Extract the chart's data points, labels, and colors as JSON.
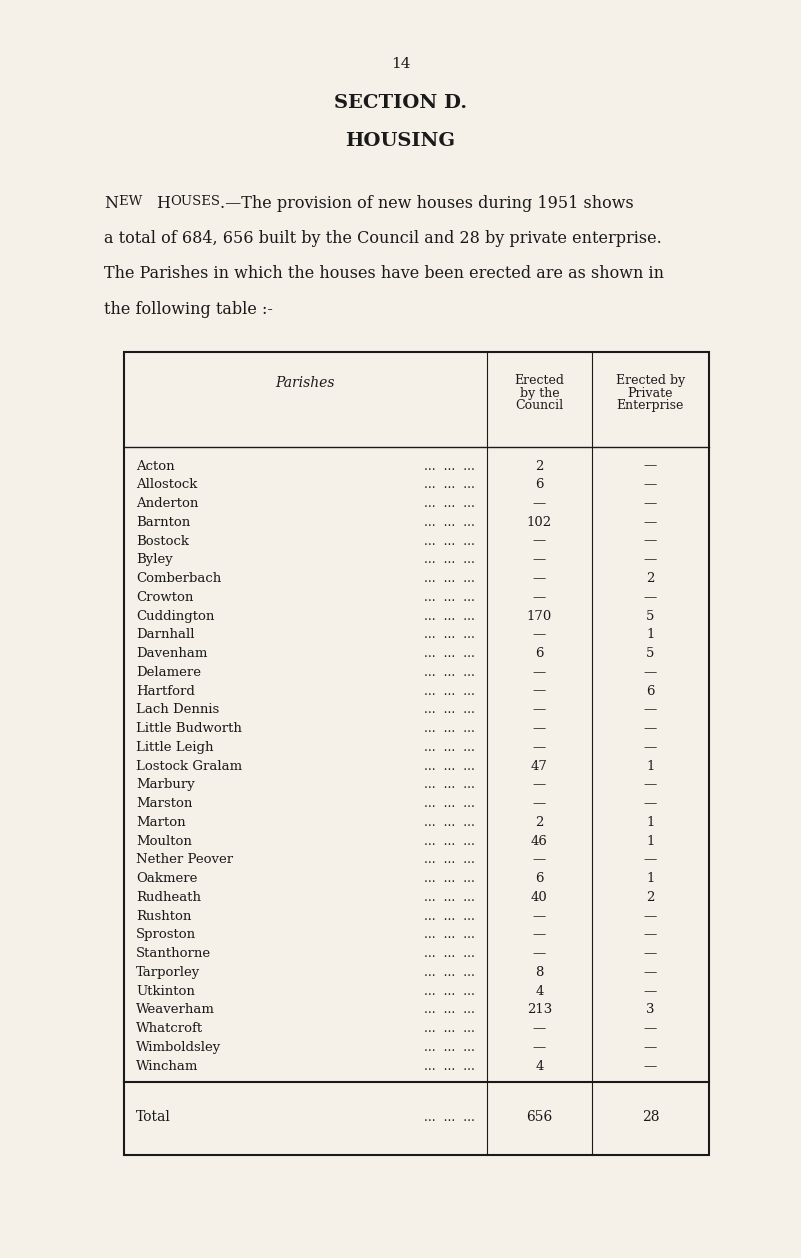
{
  "page_number": "14",
  "section_title": "SECTION D.",
  "section_subtitle": "HOUSING",
  "intro_text": [
    "New Houses.—The provision of new houses during 1951 shows",
    "a total of 684, 656 built by the Council and 28 by private enterprise.",
    "The Parishes in which the houses have been erected are as shown in",
    "the following table :-"
  ],
  "col_headers": [
    "Parishes",
    "Erected\nby the\nCouncil",
    "Erected by\nPrivate\nEnterprise"
  ],
  "parishes": [
    "Acton",
    "Allostock",
    "Anderton",
    "Barnton",
    "Bostock",
    "Byley",
    "Comberbach",
    "Crowton",
    "Cuddington",
    "Darnhall",
    "Davenham",
    "Delamere",
    "Hartford",
    "Lach Dennis",
    "Little Budworth",
    "Little Leigh",
    "Lostock Gralam",
    "Marbury",
    "Marston",
    "Marton",
    "Moulton",
    "Nether Peover",
    "Oakmere",
    "Rudheath",
    "Rushton",
    "Sproston",
    "Stanthorne",
    "Tarporley",
    "Utkinton",
    "Weaverham",
    "Whatcroft",
    "Wimboldsley",
    "Wincham"
  ],
  "council": [
    "2",
    "6",
    "—",
    "102",
    "—",
    "—",
    "—",
    "—",
    "170",
    "—",
    "6",
    "—",
    "—",
    "—",
    "—",
    "—",
    "47",
    "—",
    "—",
    "2",
    "46",
    "—",
    "6",
    "40",
    "—",
    "—",
    "—",
    "8",
    "4",
    "213",
    "—",
    "—",
    "4"
  ],
  "private": [
    "—",
    "—",
    "—",
    "—",
    "—",
    "—",
    "2",
    "—",
    "5",
    "1",
    "5",
    "—",
    "6",
    "—",
    "—",
    "—",
    "1",
    "—",
    "—",
    "1",
    "1",
    "—",
    "1",
    "2",
    "—",
    "—",
    "—",
    "—",
    "—",
    "3",
    "—",
    "—",
    "—"
  ],
  "total_council": "656",
  "total_private": "28",
  "background_color": "#f5f0e8",
  "text_color": "#1a1a1a",
  "dots": "...     ...     ..."
}
